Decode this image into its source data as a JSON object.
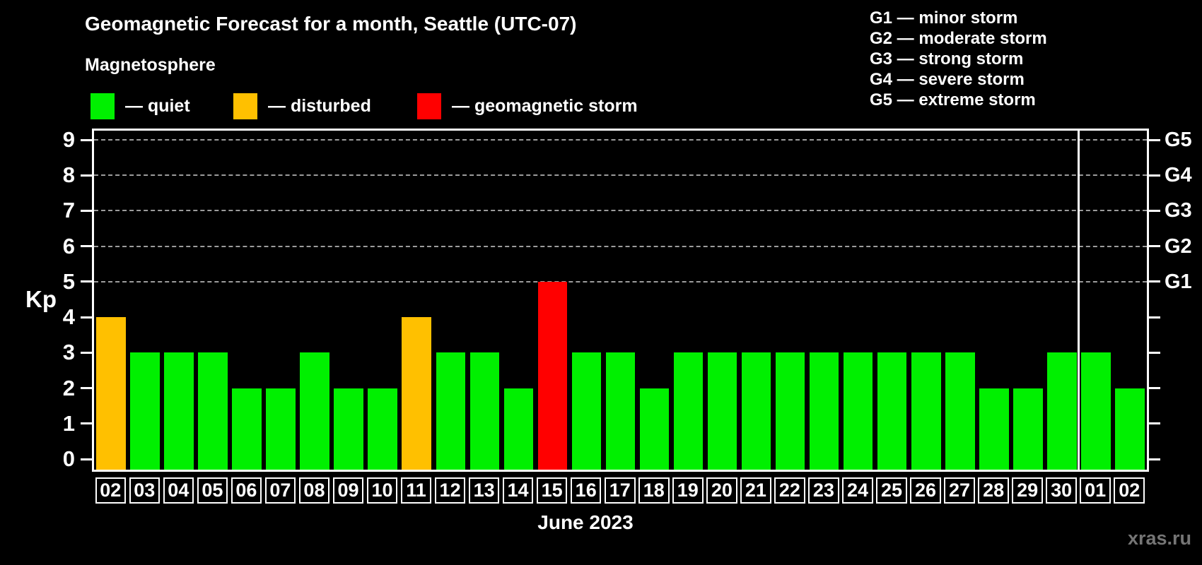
{
  "header": {
    "title": "Geomagnetic Forecast for a month, Seattle (UTC-07)",
    "subtitle": "Magnetosphere"
  },
  "legend": {
    "items": [
      {
        "status": "quiet",
        "label": "— quiet"
      },
      {
        "status": "disturbed",
        "label": "— disturbed"
      },
      {
        "status": "storm",
        "label": "— geomagnetic storm"
      }
    ]
  },
  "storm_scale": {
    "items": [
      {
        "text": "G1 — minor storm"
      },
      {
        "text": "G2 — moderate storm"
      },
      {
        "text": "G3 — strong storm"
      },
      {
        "text": "G4 — severe storm"
      },
      {
        "text": "G5 — extreme storm"
      }
    ]
  },
  "colors": {
    "quiet": "#00f000",
    "disturbed": "#ffc000",
    "storm": "#ff0000",
    "frame": "#ffffff",
    "grid": "#9c9c9c",
    "text": "#ffffff",
    "watermark": "#757575",
    "background": "#000000"
  },
  "chart_data": {
    "type": "bar",
    "title": "Geomagnetic Forecast for a month, Seattle (UTC-07)",
    "ylabel": "Kp",
    "xlabel": "June 2023",
    "ylim": [
      0,
      9
    ],
    "yticks": [
      0,
      1,
      2,
      3,
      4,
      5,
      6,
      7,
      8,
      9
    ],
    "grid_values": [
      5,
      6,
      7,
      8,
      9
    ],
    "right_axis_labels": [
      {
        "value": 5,
        "label": "G1"
      },
      {
        "value": 6,
        "label": "G2"
      },
      {
        "value": 7,
        "label": "G3"
      },
      {
        "value": 8,
        "label": "G4"
      },
      {
        "value": 9,
        "label": "G5"
      }
    ],
    "month_separator_after_index": 28,
    "days": [
      {
        "date": "02",
        "kp": 4,
        "status": "disturbed"
      },
      {
        "date": "03",
        "kp": 3,
        "status": "quiet"
      },
      {
        "date": "04",
        "kp": 3,
        "status": "quiet"
      },
      {
        "date": "05",
        "kp": 3,
        "status": "quiet"
      },
      {
        "date": "06",
        "kp": 2,
        "status": "quiet"
      },
      {
        "date": "07",
        "kp": 2,
        "status": "quiet"
      },
      {
        "date": "08",
        "kp": 3,
        "status": "quiet"
      },
      {
        "date": "09",
        "kp": 2,
        "status": "quiet"
      },
      {
        "date": "10",
        "kp": 2,
        "status": "quiet"
      },
      {
        "date": "11",
        "kp": 4,
        "status": "disturbed"
      },
      {
        "date": "12",
        "kp": 3,
        "status": "quiet"
      },
      {
        "date": "13",
        "kp": 3,
        "status": "quiet"
      },
      {
        "date": "14",
        "kp": 2,
        "status": "quiet"
      },
      {
        "date": "15",
        "kp": 5,
        "status": "storm"
      },
      {
        "date": "16",
        "kp": 3,
        "status": "quiet"
      },
      {
        "date": "17",
        "kp": 3,
        "status": "quiet"
      },
      {
        "date": "18",
        "kp": 2,
        "status": "quiet"
      },
      {
        "date": "19",
        "kp": 3,
        "status": "quiet"
      },
      {
        "date": "20",
        "kp": 3,
        "status": "quiet"
      },
      {
        "date": "21",
        "kp": 3,
        "status": "quiet"
      },
      {
        "date": "22",
        "kp": 3,
        "status": "quiet"
      },
      {
        "date": "23",
        "kp": 3,
        "status": "quiet"
      },
      {
        "date": "24",
        "kp": 3,
        "status": "quiet"
      },
      {
        "date": "25",
        "kp": 3,
        "status": "quiet"
      },
      {
        "date": "26",
        "kp": 3,
        "status": "quiet"
      },
      {
        "date": "27",
        "kp": 3,
        "status": "quiet"
      },
      {
        "date": "28",
        "kp": 2,
        "status": "quiet"
      },
      {
        "date": "29",
        "kp": 2,
        "status": "quiet"
      },
      {
        "date": "30",
        "kp": 3,
        "status": "quiet"
      },
      {
        "date": "01",
        "kp": 3,
        "status": "quiet"
      },
      {
        "date": "02",
        "kp": 2,
        "status": "quiet"
      }
    ]
  },
  "footer": {
    "xlabel": "June 2023",
    "watermark": "xras.ru"
  }
}
